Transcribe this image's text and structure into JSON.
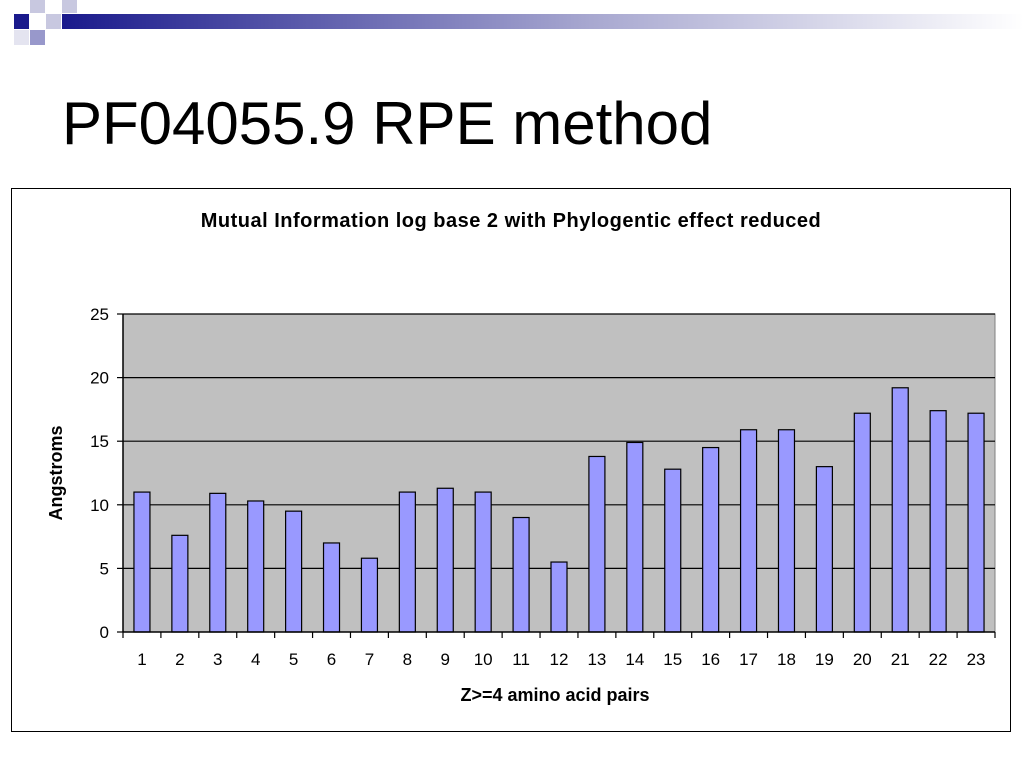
{
  "slide": {
    "title": "PF04055.9 RPE method"
  },
  "theme": {
    "deco_color": "#1a1a8c",
    "plot_bg": "#c0c0c0",
    "bar_fill": "#9999ff",
    "bar_stroke": "#000000"
  },
  "chart_data": {
    "type": "bar",
    "title": "Mutual Information log base 2 with Phylogentic effect reduced",
    "xlabel": "Z>=4 amino acid pairs",
    "ylabel": "Angstroms",
    "ylim": [
      0,
      25
    ],
    "yticks": [
      0,
      5,
      10,
      15,
      20,
      25
    ],
    "grid": true,
    "legend": "none",
    "categories": [
      "1",
      "2",
      "3",
      "4",
      "5",
      "6",
      "7",
      "8",
      "9",
      "10",
      "11",
      "12",
      "13",
      "14",
      "15",
      "16",
      "17",
      "18",
      "19",
      "20",
      "21",
      "22",
      "23"
    ],
    "values": [
      11.0,
      7.6,
      10.9,
      10.3,
      9.5,
      7.0,
      5.8,
      11.0,
      11.3,
      11.0,
      9.0,
      5.5,
      13.8,
      14.9,
      12.8,
      14.5,
      15.9,
      15.9,
      13.0,
      17.2,
      19.2,
      17.4,
      17.2
    ]
  }
}
